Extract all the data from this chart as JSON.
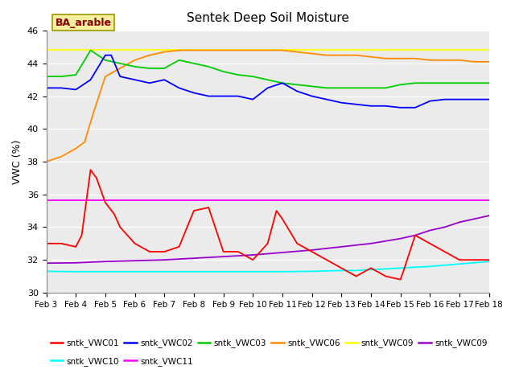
{
  "title": "Sentek Deep Soil Moisture",
  "ylabel": "VWC (%)",
  "xlim": [
    0,
    15
  ],
  "ylim": [
    30,
    46
  ],
  "yticks": [
    30,
    32,
    34,
    36,
    38,
    40,
    42,
    44,
    46
  ],
  "xtick_labels": [
    "Feb 3",
    "Feb 4",
    "Feb 5",
    "Feb 6",
    "Feb 7",
    "Feb 8",
    "Feb 9",
    "Feb 10",
    "Feb 11",
    "Feb 12",
    "Feb 13",
    "Feb 14",
    "Feb 15",
    "Feb 16",
    "Feb 17",
    "Feb 18"
  ],
  "annotation_text": "BA_arable",
  "annotation_color": "#8B0000",
  "annotation_bg": "#F5F0A0",
  "bg_color": "#EBEBEB",
  "fig_bg": "#FFFFFF",
  "series": {
    "sntk_VWC01": {
      "color": "#FF0000",
      "label": "sntk_VWC01",
      "x": [
        0,
        0.5,
        1.0,
        1.2,
        1.5,
        1.7,
        2.0,
        2.3,
        2.5,
        3.0,
        3.5,
        4.0,
        4.5,
        5.0,
        5.5,
        6.0,
        6.5,
        7.0,
        7.5,
        7.8,
        8.0,
        8.5,
        9.0,
        9.5,
        10.0,
        10.5,
        11.0,
        11.5,
        12.0,
        12.1,
        12.5,
        13.0,
        13.5,
        14.0,
        14.5,
        15.0
      ],
      "y": [
        33.0,
        33.0,
        32.8,
        33.5,
        37.5,
        37.0,
        35.5,
        34.8,
        34.0,
        33.0,
        32.5,
        32.5,
        32.8,
        35.0,
        35.2,
        32.5,
        32.5,
        32.0,
        33.0,
        35.0,
        34.5,
        33.0,
        32.5,
        32.0,
        31.5,
        31.0,
        31.5,
        31.0,
        30.8,
        31.3,
        33.5,
        33.0,
        32.5,
        32.0,
        32.0,
        32.0
      ]
    },
    "sntk_VWC02": {
      "color": "#0000FF",
      "label": "sntk_VWC02",
      "x": [
        0,
        0.5,
        1.0,
        1.5,
        2.0,
        2.2,
        2.5,
        3.0,
        3.5,
        4.0,
        4.5,
        5.0,
        5.5,
        6.0,
        6.5,
        7.0,
        7.5,
        8.0,
        8.5,
        9.0,
        9.5,
        10.0,
        10.5,
        11.0,
        11.5,
        12.0,
        12.5,
        13.0,
        13.5,
        14.0,
        14.5,
        15.0
      ],
      "y": [
        42.5,
        42.5,
        42.4,
        43.0,
        44.5,
        44.5,
        43.2,
        43.0,
        42.8,
        43.0,
        42.5,
        42.2,
        42.0,
        42.0,
        42.0,
        41.8,
        42.5,
        42.8,
        42.3,
        42.0,
        41.8,
        41.6,
        41.5,
        41.4,
        41.4,
        41.3,
        41.3,
        41.7,
        41.8,
        41.8,
        41.8,
        41.8
      ]
    },
    "sntk_VWC03": {
      "color": "#00CC00",
      "label": "sntk_VWC03",
      "x": [
        0,
        0.5,
        1.0,
        1.5,
        2.0,
        2.5,
        3.0,
        3.5,
        4.0,
        4.5,
        5.0,
        5.5,
        6.0,
        6.5,
        7.0,
        7.5,
        8.0,
        8.5,
        9.0,
        9.5,
        10.0,
        10.5,
        11.0,
        11.5,
        12.0,
        12.5,
        13.0,
        13.5,
        14.0,
        14.5,
        15.0
      ],
      "y": [
        43.2,
        43.2,
        43.3,
        44.8,
        44.2,
        44.0,
        43.8,
        43.7,
        43.7,
        44.2,
        44.0,
        43.8,
        43.5,
        43.3,
        43.2,
        43.0,
        42.8,
        42.7,
        42.6,
        42.5,
        42.5,
        42.5,
        42.5,
        42.5,
        42.7,
        42.8,
        42.8,
        42.8,
        42.8,
        42.8,
        42.8
      ]
    },
    "sntk_VWC06": {
      "color": "#FF8C00",
      "label": "sntk_VWC06",
      "x": [
        0,
        0.5,
        1.0,
        1.3,
        1.6,
        2.0,
        2.3,
        2.6,
        3.0,
        3.5,
        4.0,
        4.5,
        5.0,
        5.5,
        6.0,
        6.5,
        7.0,
        7.5,
        8.0,
        8.5,
        9.0,
        9.5,
        10.0,
        10.5,
        11.0,
        11.5,
        12.0,
        12.5,
        13.0,
        13.5,
        14.0,
        14.5,
        15.0
      ],
      "y": [
        38.0,
        38.3,
        38.8,
        39.2,
        41.0,
        43.2,
        43.5,
        43.8,
        44.2,
        44.5,
        44.7,
        44.8,
        44.8,
        44.8,
        44.8,
        44.8,
        44.8,
        44.8,
        44.8,
        44.7,
        44.6,
        44.5,
        44.5,
        44.5,
        44.4,
        44.3,
        44.3,
        44.3,
        44.2,
        44.2,
        44.2,
        44.1,
        44.1
      ]
    },
    "sntk_VWC09_yellow": {
      "color": "#FFFF00",
      "label": "sntk_VWC09",
      "x": [
        0,
        15
      ],
      "y": [
        44.85,
        44.85
      ]
    },
    "sntk_VWC09_purple": {
      "color": "#9900CC",
      "label": "sntk_VWC09",
      "x": [
        0,
        1,
        2,
        3,
        4,
        5,
        6,
        7,
        8,
        9,
        10,
        11,
        12,
        12.5,
        13,
        13.5,
        14,
        14.5,
        15
      ],
      "y": [
        31.8,
        31.82,
        31.9,
        31.95,
        32.0,
        32.1,
        32.2,
        32.3,
        32.45,
        32.6,
        32.8,
        33.0,
        33.3,
        33.5,
        33.8,
        34.0,
        34.3,
        34.5,
        34.7
      ]
    },
    "sntk_VWC10": {
      "color": "#00FFFF",
      "label": "sntk_VWC10",
      "x": [
        0,
        1,
        2,
        3,
        4,
        5,
        6,
        7,
        8,
        9,
        10,
        10.5,
        11,
        12,
        13,
        14,
        15
      ],
      "y": [
        31.3,
        31.28,
        31.28,
        31.28,
        31.28,
        31.28,
        31.28,
        31.28,
        31.28,
        31.3,
        31.35,
        31.35,
        31.4,
        31.5,
        31.6,
        31.75,
        31.9
      ]
    },
    "sntk_VWC11": {
      "color": "#FF00FF",
      "label": "sntk_VWC11",
      "x": [
        0,
        15
      ],
      "y": [
        35.65,
        35.65
      ]
    }
  },
  "legend_row1_keys": [
    "sntk_VWC01",
    "sntk_VWC02",
    "sntk_VWC03",
    "sntk_VWC06",
    "sntk_VWC09_yellow",
    "sntk_VWC09_purple"
  ],
  "legend_row1_labels": [
    "sntk_VWC01",
    "sntk_VWC02",
    "sntk_VWC03",
    "sntk_VWC06",
    "sntk_VWC09",
    "sntk_VWC09"
  ],
  "legend_row2_keys": [
    "sntk_VWC10",
    "sntk_VWC11"
  ],
  "legend_row2_labels": [
    "sntk_VWC10",
    "sntk_VWC11"
  ]
}
